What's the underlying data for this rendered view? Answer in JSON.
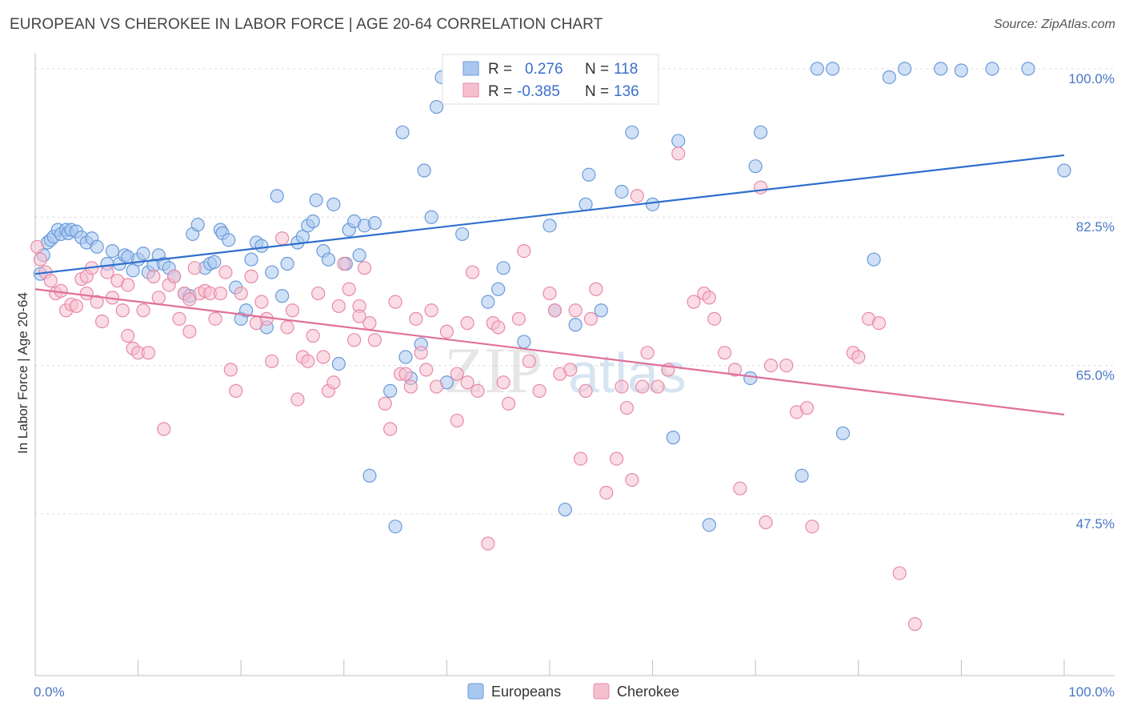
{
  "title": "EUROPEAN VS CHEROKEE IN LABOR FORCE | AGE 20-64 CORRELATION CHART",
  "source": "Source: ZipAtlas.com",
  "colors": {
    "european_fill": "#a9c8f0",
    "european_stroke": "#6a9ad8",
    "european_line": "#2f6fce",
    "cherokee_fill": "#f6bfd0",
    "cherokee_stroke": "#e88aa8",
    "cherokee_line": "#e0709a",
    "value_text": "#3a6fc9",
    "label_text": "#333333"
  },
  "stats": [
    {
      "r_label": "R =",
      "r_value": "0.276",
      "n_label": "N =",
      "n_value": "118"
    },
    {
      "r_label": "R =",
      "r_value": "-0.385",
      "n_label": "N =",
      "n_value": "136"
    }
  ],
  "watermark": {
    "zip": "ZIP",
    "atlas": "atlas"
  },
  "chart_data": {
    "type": "scatter",
    "title": "EUROPEAN VS CHEROKEE IN LABOR FORCE | AGE 20-64 CORRELATION CHART",
    "xlabel": "",
    "ylabel": "In Labor Force | Age 20-64",
    "xlim": [
      0,
      100
    ],
    "ylim": [
      30.5,
      101.5
    ],
    "x_tick_labels": [
      "0.0%",
      "100.0%"
    ],
    "y_ticks": [
      47.5,
      65.0,
      82.5,
      100.0
    ],
    "y_tick_labels": [
      "47.5%",
      "65.0%",
      "82.5%",
      "100.0%"
    ],
    "grid": true,
    "legend_position": "bottom-center",
    "legend": [
      "Europeans",
      "Cherokee"
    ],
    "series": [
      {
        "name": "Europeans",
        "trend": {
          "x": [
            0,
            100
          ],
          "y": [
            75.8,
            89.8
          ]
        },
        "points": [
          [
            0.5,
            75.8
          ],
          [
            0.8,
            78.0
          ],
          [
            1.2,
            79.5
          ],
          [
            1.5,
            79.8
          ],
          [
            1.8,
            80.2
          ],
          [
            2.2,
            81.0
          ],
          [
            2.5,
            80.5
          ],
          [
            3.0,
            81.0
          ],
          [
            3.2,
            80.6
          ],
          [
            3.5,
            81.0
          ],
          [
            4.0,
            80.8
          ],
          [
            4.5,
            80.1
          ],
          [
            5.0,
            79.5
          ],
          [
            5.5,
            80.0
          ],
          [
            6.0,
            79.0
          ],
          [
            7.0,
            77.0
          ],
          [
            7.5,
            78.5
          ],
          [
            8.2,
            77.0
          ],
          [
            8.7,
            78.0
          ],
          [
            9.0,
            77.8
          ],
          [
            9.5,
            76.2
          ],
          [
            10.0,
            77.5
          ],
          [
            10.5,
            78.2
          ],
          [
            11.0,
            76.0
          ],
          [
            11.5,
            76.8
          ],
          [
            12.0,
            78.0
          ],
          [
            12.5,
            77.0
          ],
          [
            13.0,
            76.5
          ],
          [
            13.5,
            75.5
          ],
          [
            14.5,
            73.5
          ],
          [
            15.0,
            73.2
          ],
          [
            15.3,
            80.5
          ],
          [
            15.8,
            81.6
          ],
          [
            16.5,
            76.5
          ],
          [
            17.0,
            77.0
          ],
          [
            17.4,
            77.2
          ],
          [
            18.0,
            81.0
          ],
          [
            18.2,
            80.6
          ],
          [
            18.8,
            79.8
          ],
          [
            19.5,
            74.2
          ],
          [
            20.0,
            70.5
          ],
          [
            20.5,
            71.5
          ],
          [
            21.0,
            77.5
          ],
          [
            21.5,
            79.5
          ],
          [
            22.0,
            79.1
          ],
          [
            22.5,
            69.5
          ],
          [
            23.0,
            76.0
          ],
          [
            23.5,
            85.0
          ],
          [
            24.0,
            73.2
          ],
          [
            24.5,
            77.0
          ],
          [
            25.5,
            79.5
          ],
          [
            26.0,
            80.2
          ],
          [
            26.5,
            81.5
          ],
          [
            27.0,
            82.0
          ],
          [
            27.3,
            84.5
          ],
          [
            28.0,
            78.5
          ],
          [
            28.5,
            77.5
          ],
          [
            29.0,
            84.0
          ],
          [
            29.5,
            65.2
          ],
          [
            30.2,
            77.0
          ],
          [
            30.5,
            81.0
          ],
          [
            31.0,
            82.0
          ],
          [
            31.5,
            78.0
          ],
          [
            32.0,
            81.5
          ],
          [
            33.0,
            81.8
          ],
          [
            34.5,
            62.0
          ],
          [
            36.0,
            66.0
          ],
          [
            35.7,
            92.5
          ],
          [
            36.5,
            63.5
          ],
          [
            37.5,
            67.5
          ],
          [
            37.8,
            88.0
          ],
          [
            38.5,
            82.5
          ],
          [
            39.0,
            95.5
          ],
          [
            39.5,
            99.0
          ],
          [
            40.0,
            63.0
          ],
          [
            41.0,
            100.0
          ],
          [
            41.5,
            80.5
          ],
          [
            42.5,
            100.0
          ],
          [
            44.0,
            72.5
          ],
          [
            45.0,
            74.0
          ],
          [
            45.5,
            76.5
          ],
          [
            46.0,
            99.0
          ],
          [
            46.5,
            100.0
          ],
          [
            47.5,
            67.8
          ],
          [
            49.0,
            100.0
          ],
          [
            50.0,
            81.5
          ],
          [
            50.5,
            71.5
          ],
          [
            52.0,
            100.0
          ],
          [
            52.5,
            69.8
          ],
          [
            53.5,
            84.0
          ],
          [
            53.8,
            87.5
          ],
          [
            55.0,
            71.5
          ],
          [
            56.0,
            100.0
          ],
          [
            57.0,
            85.5
          ],
          [
            58.0,
            92.5
          ],
          [
            60.0,
            84.0
          ],
          [
            62.0,
            56.5
          ],
          [
            62.5,
            91.5
          ],
          [
            69.5,
            63.5
          ],
          [
            70.0,
            88.5
          ],
          [
            70.5,
            92.5
          ],
          [
            74.5,
            52.0
          ],
          [
            76.0,
            100.0
          ],
          [
            77.5,
            100.0
          ],
          [
            78.5,
            57.0
          ],
          [
            81.5,
            77.5
          ],
          [
            83.0,
            99.0
          ],
          [
            84.5,
            100.0
          ],
          [
            88.0,
            100.0
          ],
          [
            90.0,
            99.8
          ],
          [
            93.0,
            100.0
          ],
          [
            96.5,
            100.0
          ],
          [
            100.0,
            88.0
          ],
          [
            32.5,
            52.0
          ],
          [
            35.0,
            46.0
          ],
          [
            51.5,
            48.0
          ],
          [
            65.5,
            46.2
          ]
        ]
      },
      {
        "name": "Cherokee",
        "trend": {
          "x": [
            0,
            100
          ],
          "y": [
            74.0,
            59.2
          ]
        },
        "points": [
          [
            0.2,
            79.0
          ],
          [
            0.5,
            77.5
          ],
          [
            1.0,
            76.0
          ],
          [
            1.5,
            75.0
          ],
          [
            2.0,
            73.5
          ],
          [
            2.5,
            73.8
          ],
          [
            3.0,
            71.5
          ],
          [
            3.5,
            72.2
          ],
          [
            4.0,
            72.0
          ],
          [
            4.5,
            75.2
          ],
          [
            5.0,
            75.5
          ],
          [
            5.5,
            76.5
          ],
          [
            6.0,
            72.5
          ],
          [
            6.5,
            70.2
          ],
          [
            7.0,
            76.0
          ],
          [
            7.5,
            73.0
          ],
          [
            8.0,
            75.0
          ],
          [
            8.5,
            71.5
          ],
          [
            9.0,
            68.5
          ],
          [
            9.5,
            67.0
          ],
          [
            10.0,
            66.5
          ],
          [
            10.5,
            71.5
          ],
          [
            11.0,
            66.5
          ],
          [
            11.5,
            75.5
          ],
          [
            12.0,
            73.0
          ],
          [
            12.5,
            57.5
          ],
          [
            13.0,
            74.5
          ],
          [
            14.0,
            70.5
          ],
          [
            14.5,
            73.5
          ],
          [
            15.0,
            72.8
          ],
          [
            15.5,
            76.5
          ],
          [
            16.0,
            73.5
          ],
          [
            16.5,
            73.8
          ],
          [
            17.0,
            73.5
          ],
          [
            17.5,
            70.5
          ],
          [
            18.0,
            73.5
          ],
          [
            18.5,
            76.0
          ],
          [
            19.0,
            64.5
          ],
          [
            19.5,
            62.0
          ],
          [
            20.0,
            73.5
          ],
          [
            21.0,
            75.5
          ],
          [
            21.5,
            70.0
          ],
          [
            22.0,
            72.5
          ],
          [
            22.5,
            70.5
          ],
          [
            23.0,
            65.5
          ],
          [
            24.0,
            80.0
          ],
          [
            24.5,
            69.5
          ],
          [
            25.0,
            71.5
          ],
          [
            25.5,
            61.0
          ],
          [
            26.0,
            66.0
          ],
          [
            26.5,
            65.5
          ],
          [
            27.0,
            68.5
          ],
          [
            27.5,
            73.5
          ],
          [
            28.0,
            66.0
          ],
          [
            28.5,
            62.0
          ],
          [
            29.0,
            63.0
          ],
          [
            29.5,
            72.0
          ],
          [
            30.0,
            77.0
          ],
          [
            30.5,
            74.0
          ],
          [
            31.0,
            68.0
          ],
          [
            31.5,
            72.0
          ],
          [
            32.0,
            76.5
          ],
          [
            32.5,
            70.0
          ],
          [
            33.0,
            68.0
          ],
          [
            34.0,
            60.5
          ],
          [
            34.5,
            57.5
          ],
          [
            35.0,
            72.5
          ],
          [
            35.5,
            64.0
          ],
          [
            36.0,
            64.0
          ],
          [
            36.5,
            62.5
          ],
          [
            37.0,
            70.5
          ],
          [
            37.5,
            66.5
          ],
          [
            38.0,
            64.5
          ],
          [
            38.5,
            71.5
          ],
          [
            39.0,
            62.5
          ],
          [
            40.0,
            69.0
          ],
          [
            41.0,
            64.0
          ],
          [
            42.0,
            63.0
          ],
          [
            42.5,
            76.0
          ],
          [
            43.0,
            62.0
          ],
          [
            44.5,
            70.0
          ],
          [
            45.0,
            69.5
          ],
          [
            45.5,
            63.0
          ],
          [
            46.0,
            60.5
          ],
          [
            47.0,
            70.5
          ],
          [
            47.5,
            78.5
          ],
          [
            48.0,
            65.5
          ],
          [
            49.0,
            62.0
          ],
          [
            50.0,
            73.5
          ],
          [
            50.5,
            71.5
          ],
          [
            51.0,
            64.0
          ],
          [
            52.0,
            64.5
          ],
          [
            52.5,
            71.5
          ],
          [
            53.0,
            54.0
          ],
          [
            53.5,
            62.0
          ],
          [
            54.0,
            70.5
          ],
          [
            54.5,
            74.0
          ],
          [
            55.5,
            50.0
          ],
          [
            56.5,
            54.0
          ],
          [
            57.0,
            62.5
          ],
          [
            57.5,
            60.0
          ],
          [
            58.0,
            51.5
          ],
          [
            58.5,
            85.0
          ],
          [
            59.0,
            62.5
          ],
          [
            59.5,
            66.5
          ],
          [
            60.5,
            62.5
          ],
          [
            61.5,
            64.5
          ],
          [
            62.5,
            90.0
          ],
          [
            64.0,
            72.5
          ],
          [
            65.0,
            73.5
          ],
          [
            65.5,
            73.0
          ],
          [
            66.0,
            70.5
          ],
          [
            67.0,
            66.5
          ],
          [
            68.0,
            64.5
          ],
          [
            68.5,
            50.5
          ],
          [
            70.5,
            86.0
          ],
          [
            71.0,
            46.5
          ],
          [
            71.5,
            65.0
          ],
          [
            73.0,
            65.0
          ],
          [
            74.0,
            59.5
          ],
          [
            75.0,
            60.0
          ],
          [
            75.5,
            46.0
          ],
          [
            79.5,
            66.5
          ],
          [
            80.0,
            66.0
          ],
          [
            81.0,
            70.5
          ],
          [
            82.0,
            70.0
          ],
          [
            84.0,
            40.5
          ],
          [
            85.5,
            34.5
          ],
          [
            31.5,
            70.8
          ],
          [
            42.0,
            70.0
          ],
          [
            44.0,
            44.0
          ],
          [
            41.0,
            58.5
          ],
          [
            15.0,
            69.0
          ],
          [
            5.0,
            73.5
          ],
          [
            9.0,
            74.5
          ],
          [
            13.5,
            75.5
          ]
        ]
      }
    ]
  }
}
